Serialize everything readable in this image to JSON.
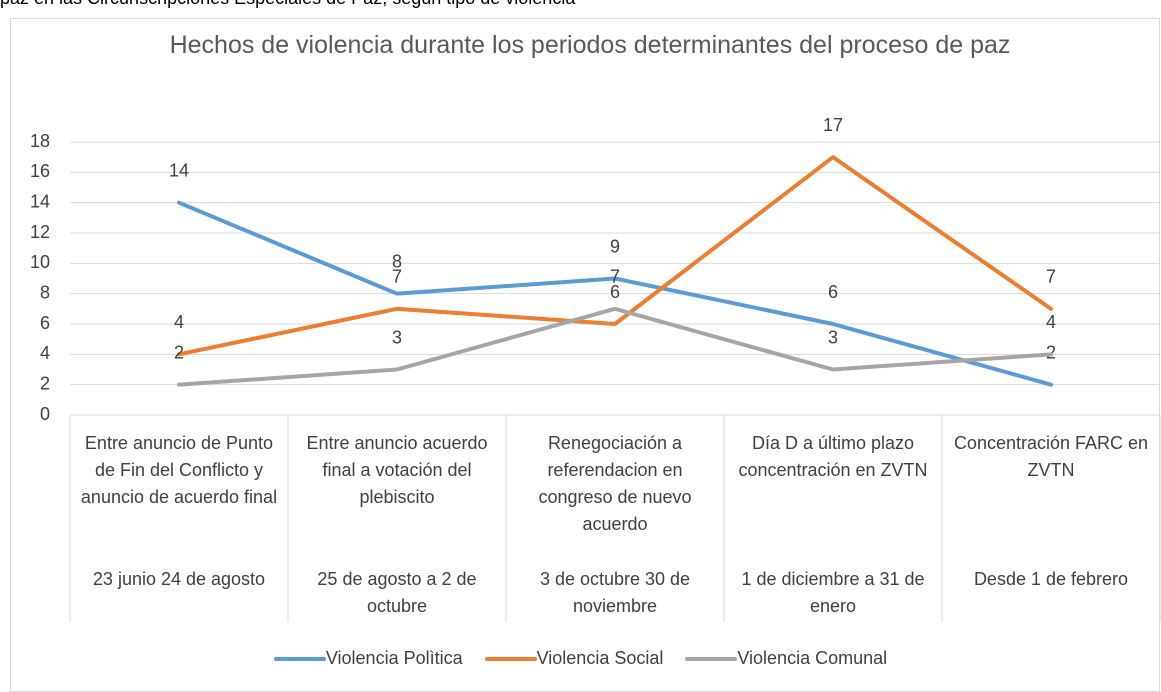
{
  "caption": "paz en las Circunscripciones Especiales de Paz, según tipo de violencia",
  "chart_data": {
    "type": "line",
    "title": "Hechos de violencia durante los periodos determinantes del proceso de paz",
    "categories": [
      "Entre anuncio de Punto de Fin del Conflicto y anuncio de acuerdo final",
      "Entre anuncio acuerdo final a votación del plebiscito",
      "Renegociación a referendacion en congreso de nuevo acuerdo",
      "Día D a último plazo concentración en ZVTN",
      "Concentración FARC en ZVTN"
    ],
    "category_periods": [
      "23 junio 24 de agosto",
      "25 de agosto a 2 de octubre",
      "3 de octubre 30 de noviembre",
      "1 de diciembre a 31 de enero",
      "Desde 1 de febrero"
    ],
    "series": [
      {
        "name": "Violencia Polìtica",
        "color": "#5b9bd5",
        "values": [
          14,
          8,
          9,
          6,
          2
        ]
      },
      {
        "name": "Violencia Social",
        "color": "#ed7d31",
        "values": [
          4,
          7,
          6,
          17,
          7
        ]
      },
      {
        "name": "Violencia Comunal",
        "color": "#a5a5a5",
        "values": [
          2,
          3,
          7,
          3,
          4
        ]
      }
    ],
    "ylim": [
      0,
      18
    ],
    "yticks": [
      0,
      2,
      4,
      6,
      8,
      10,
      12,
      14,
      16,
      18
    ],
    "grid": true,
    "legend": "bottom",
    "data_labels": true
  }
}
